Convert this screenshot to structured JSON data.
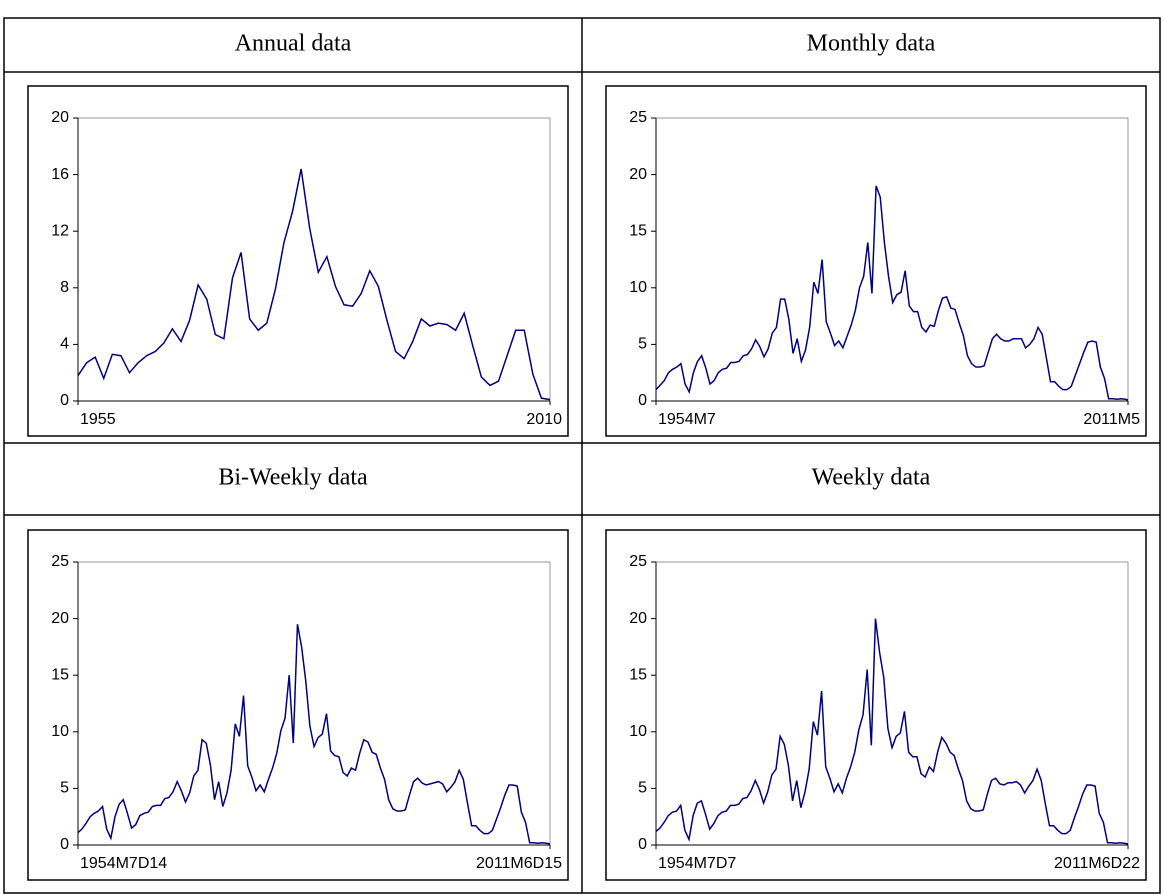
{
  "chart_data": [
    {
      "type": "line",
      "title": "Annual data",
      "color": "#000080",
      "x": [
        1955,
        1956,
        1957,
        1958,
        1959,
        1960,
        1961,
        1962,
        1963,
        1964,
        1965,
        1966,
        1967,
        1968,
        1969,
        1970,
        1971,
        1972,
        1973,
        1974,
        1975,
        1976,
        1977,
        1978,
        1979,
        1980,
        1981,
        1982,
        1983,
        1984,
        1985,
        1986,
        1987,
        1988,
        1989,
        1990,
        1991,
        1992,
        1993,
        1994,
        1995,
        1996,
        1997,
        1998,
        1999,
        2000,
        2001,
        2002,
        2003,
        2004,
        2005,
        2006,
        2007,
        2008,
        2009,
        2010
      ],
      "values": [
        1.8,
        2.7,
        3.1,
        1.6,
        3.3,
        3.2,
        2.0,
        2.7,
        3.2,
        3.5,
        4.1,
        5.1,
        4.2,
        5.7,
        8.2,
        7.2,
        4.7,
        4.4,
        8.7,
        10.5,
        5.8,
        5.0,
        5.5,
        7.9,
        11.2,
        13.4,
        16.4,
        12.2,
        9.1,
        10.2,
        8.1,
        6.8,
        6.7,
        7.6,
        9.2,
        8.1,
        5.7,
        3.5,
        3.0,
        4.2,
        5.8,
        5.3,
        5.5,
        5.4,
        5.0,
        6.2,
        3.9,
        1.7,
        1.1,
        1.4,
        3.2,
        5.0,
        5.0,
        1.9,
        0.2,
        0.1
      ],
      "xlim": [
        1955,
        2010
      ],
      "xticks": [
        1955,
        2010
      ],
      "ylim": [
        0,
        20
      ],
      "yticks": [
        0,
        4,
        8,
        12,
        16,
        20
      ]
    },
    {
      "type": "line",
      "title": "Monthly data",
      "color": "#000080",
      "x": [
        1954.5,
        1955,
        1955.5,
        1956,
        1956.5,
        1957,
        1957.5,
        1958,
        1958.5,
        1959,
        1959.5,
        1960,
        1960.5,
        1961,
        1961.5,
        1962,
        1962.5,
        1963,
        1963.5,
        1964,
        1964.5,
        1965,
        1965.5,
        1966,
        1966.5,
        1967,
        1967.5,
        1968,
        1968.5,
        1969,
        1969.5,
        1970,
        1970.5,
        1971,
        1971.5,
        1972,
        1972.5,
        1973,
        1973.5,
        1974,
        1974.5,
        1975,
        1975.5,
        1976,
        1976.5,
        1977,
        1977.5,
        1978,
        1978.5,
        1979,
        1979.5,
        1980,
        1980.5,
        1981,
        1981.5,
        1982,
        1982.5,
        1983,
        1983.5,
        1984,
        1984.5,
        1985,
        1985.5,
        1986,
        1986.5,
        1987,
        1987.5,
        1988,
        1988.5,
        1989,
        1989.5,
        1990,
        1990.5,
        1991,
        1991.5,
        1992,
        1992.5,
        1993,
        1993.5,
        1994,
        1994.5,
        1995,
        1995.5,
        1996,
        1996.5,
        1997,
        1997.5,
        1998,
        1998.5,
        1999,
        1999.5,
        2000,
        2000.5,
        2001,
        2001.5,
        2002,
        2002.5,
        2003,
        2003.5,
        2004,
        2004.5,
        2005,
        2005.5,
        2006,
        2006.5,
        2007,
        2007.5,
        2008,
        2008.5,
        2009,
        2009.5,
        2010,
        2010.5,
        2011,
        2011.33
      ],
      "values": [
        1.0,
        1.4,
        1.8,
        2.5,
        2.8,
        3.0,
        3.3,
        1.5,
        0.8,
        2.5,
        3.5,
        4.0,
        2.9,
        1.5,
        1.8,
        2.5,
        2.8,
        2.9,
        3.4,
        3.4,
        3.5,
        4.0,
        4.1,
        4.6,
        5.4,
        4.8,
        3.9,
        4.6,
        6.0,
        6.5,
        9.0,
        9.0,
        7.2,
        4.2,
        5.5,
        3.5,
        4.5,
        6.5,
        10.5,
        9.5,
        12.5,
        7.0,
        6.0,
        4.9,
        5.3,
        4.7,
        5.7,
        6.7,
        8.0,
        10.0,
        11.0,
        14.0,
        9.5,
        19.0,
        18.0,
        14.0,
        11.0,
        8.7,
        9.4,
        9.6,
        11.5,
        8.4,
        7.9,
        7.9,
        6.5,
        6.1,
        6.7,
        6.6,
        8.0,
        9.1,
        9.2,
        8.2,
        8.1,
        6.9,
        5.8,
        4.0,
        3.3,
        3.0,
        3.0,
        3.1,
        4.3,
        5.5,
        5.9,
        5.5,
        5.3,
        5.3,
        5.5,
        5.5,
        5.5,
        4.7,
        5.0,
        5.5,
        6.5,
        5.9,
        3.8,
        1.7,
        1.7,
        1.3,
        1.0,
        1.0,
        1.3,
        2.3,
        3.3,
        4.3,
        5.2,
        5.3,
        5.2,
        3.0,
        2.0,
        0.2,
        0.2,
        0.15,
        0.2,
        0.15,
        0.1
      ],
      "xlim": [
        1954.5,
        2011.33
      ],
      "xticks": [
        {
          "value": 1954.5,
          "label": "1954M7"
        },
        {
          "value": 2011.33,
          "label": "2011M5"
        }
      ],
      "ylim": [
        0,
        25
      ],
      "yticks": [
        0,
        5,
        10,
        15,
        20,
        25
      ]
    },
    {
      "type": "line",
      "title": "Bi-Weekly data",
      "color": "#000080",
      "x": [
        1954.54,
        1955,
        1955.5,
        1956,
        1956.5,
        1957,
        1957.5,
        1958,
        1958.5,
        1959,
        1959.5,
        1960,
        1960.5,
        1961,
        1961.5,
        1962,
        1962.5,
        1963,
        1963.5,
        1964,
        1964.5,
        1965,
        1965.5,
        1966,
        1966.5,
        1967,
        1967.5,
        1968,
        1968.5,
        1969,
        1969.5,
        1970,
        1970.5,
        1971,
        1971.5,
        1972,
        1972.5,
        1973,
        1973.5,
        1974,
        1974.5,
        1975,
        1975.5,
        1976,
        1976.5,
        1977,
        1977.5,
        1978,
        1978.5,
        1979,
        1979.5,
        1980,
        1980.5,
        1981,
        1981.5,
        1982,
        1982.5,
        1983,
        1983.5,
        1984,
        1984.5,
        1985,
        1985.5,
        1986,
        1986.5,
        1987,
        1987.5,
        1988,
        1988.5,
        1989,
        1989.5,
        1990,
        1990.5,
        1991,
        1991.5,
        1992,
        1992.5,
        1993,
        1993.5,
        1994,
        1994.5,
        1995,
        1995.5,
        1996,
        1996.5,
        1997,
        1997.5,
        1998,
        1998.5,
        1999,
        1999.5,
        2000,
        2000.5,
        2001,
        2001.5,
        2002,
        2002.5,
        2003,
        2003.5,
        2004,
        2004.5,
        2005,
        2005.5,
        2006,
        2006.5,
        2007,
        2007.5,
        2008,
        2008.5,
        2009,
        2009.5,
        2010,
        2010.5,
        2011,
        2011.45
      ],
      "values": [
        1.1,
        1.4,
        1.9,
        2.5,
        2.8,
        3.0,
        3.4,
        1.4,
        0.6,
        2.5,
        3.6,
        4.0,
        2.8,
        1.5,
        1.8,
        2.6,
        2.8,
        2.9,
        3.4,
        3.5,
        3.5,
        4.1,
        4.2,
        4.7,
        5.6,
        4.8,
        3.8,
        4.6,
        6.1,
        6.6,
        9.3,
        9.0,
        7.1,
        4.0,
        5.6,
        3.4,
        4.6,
        6.6,
        10.7,
        9.6,
        13.2,
        7.0,
        6.0,
        4.8,
        5.3,
        4.7,
        5.8,
        6.8,
        8.1,
        10.1,
        11.2,
        15.0,
        9.0,
        19.5,
        17.5,
        14.5,
        10.5,
        8.7,
        9.5,
        9.8,
        11.6,
        8.3,
        7.9,
        7.8,
        6.4,
        6.1,
        6.8,
        6.6,
        8.1,
        9.3,
        9.1,
        8.2,
        8.0,
        6.8,
        5.8,
        4.0,
        3.2,
        3.0,
        3.0,
        3.1,
        4.4,
        5.6,
        5.9,
        5.5,
        5.3,
        5.4,
        5.5,
        5.6,
        5.4,
        4.7,
        5.1,
        5.6,
        6.6,
        5.8,
        3.7,
        1.7,
        1.7,
        1.3,
        1.0,
        1.0,
        1.3,
        2.3,
        3.3,
        4.4,
        5.3,
        5.3,
        5.2,
        2.9,
        2.0,
        0.2,
        0.2,
        0.15,
        0.2,
        0.15,
        0.1
      ],
      "xlim": [
        1954.54,
        2011.45
      ],
      "xticks": [
        {
          "value": 1954.54,
          "label": "1954M7D14"
        },
        {
          "value": 2011.45,
          "label": "2011M6D15"
        }
      ],
      "ylim": [
        0,
        25
      ],
      "yticks": [
        0,
        5,
        10,
        15,
        20,
        25
      ]
    },
    {
      "type": "line",
      "title": "Weekly data",
      "color": "#000080",
      "x": [
        1954.52,
        1955,
        1955.5,
        1956,
        1956.5,
        1957,
        1957.5,
        1958,
        1958.5,
        1959,
        1959.5,
        1960,
        1960.5,
        1961,
        1961.5,
        1962,
        1962.5,
        1963,
        1963.5,
        1964,
        1964.5,
        1965,
        1965.5,
        1966,
        1966.5,
        1967,
        1967.5,
        1968,
        1968.5,
        1969,
        1969.5,
        1970,
        1970.5,
        1971,
        1971.5,
        1972,
        1972.5,
        1973,
        1973.5,
        1974,
        1974.5,
        1975,
        1975.5,
        1976,
        1976.5,
        1977,
        1977.5,
        1978,
        1978.5,
        1979,
        1979.5,
        1980,
        1980.5,
        1981,
        1981.5,
        1982,
        1982.5,
        1983,
        1983.5,
        1984,
        1984.5,
        1985,
        1985.5,
        1986,
        1986.5,
        1987,
        1987.5,
        1988,
        1988.5,
        1989,
        1989.5,
        1990,
        1990.5,
        1991,
        1991.5,
        1992,
        1992.5,
        1993,
        1993.5,
        1994,
        1994.5,
        1995,
        1995.5,
        1996,
        1996.5,
        1997,
        1997.5,
        1998,
        1998.5,
        1999,
        1999.5,
        2000,
        2000.5,
        2001,
        2001.5,
        2002,
        2002.5,
        2003,
        2003.5,
        2004,
        2004.5,
        2005,
        2005.5,
        2006,
        2006.5,
        2007,
        2007.5,
        2008,
        2008.5,
        2009,
        2009.5,
        2010,
        2010.5,
        2011,
        2011.47
      ],
      "values": [
        1.2,
        1.5,
        2.0,
        2.6,
        2.9,
        3.0,
        3.5,
        1.3,
        0.5,
        2.6,
        3.7,
        3.9,
        2.7,
        1.4,
        1.9,
        2.6,
        2.9,
        3.0,
        3.5,
        3.5,
        3.6,
        4.1,
        4.2,
        4.8,
        5.7,
        4.9,
        3.7,
        4.7,
        6.2,
        6.7,
        9.6,
        8.9,
        7.0,
        3.9,
        5.7,
        3.3,
        4.7,
        6.7,
        10.9,
        9.7,
        13.6,
        6.9,
        5.9,
        4.7,
        5.4,
        4.6,
        5.9,
        6.9,
        8.2,
        10.2,
        11.5,
        15.5,
        8.8,
        20.0,
        17.0,
        14.8,
        10.3,
        8.6,
        9.6,
        9.9,
        11.8,
        8.2,
        7.8,
        7.8,
        6.3,
        6.0,
        6.9,
        6.5,
        8.2,
        9.5,
        9.0,
        8.2,
        7.9,
        6.7,
        5.7,
        3.9,
        3.2,
        3.0,
        3.0,
        3.1,
        4.5,
        5.7,
        5.9,
        5.4,
        5.3,
        5.5,
        5.5,
        5.6,
        5.3,
        4.6,
        5.2,
        5.7,
        6.7,
        5.7,
        3.6,
        1.7,
        1.7,
        1.3,
        1.0,
        1.0,
        1.3,
        2.4,
        3.4,
        4.5,
        5.3,
        5.3,
        5.2,
        2.8,
        2.0,
        0.2,
        0.2,
        0.15,
        0.2,
        0.15,
        0.1
      ],
      "xlim": [
        1954.52,
        2011.47
      ],
      "xticks": [
        {
          "value": 1954.52,
          "label": "1954M7D7"
        },
        {
          "value": 2011.47,
          "label": "2011M6D22"
        }
      ],
      "ylim": [
        0,
        25
      ],
      "yticks": [
        0,
        5,
        10,
        15,
        20,
        25
      ]
    }
  ]
}
